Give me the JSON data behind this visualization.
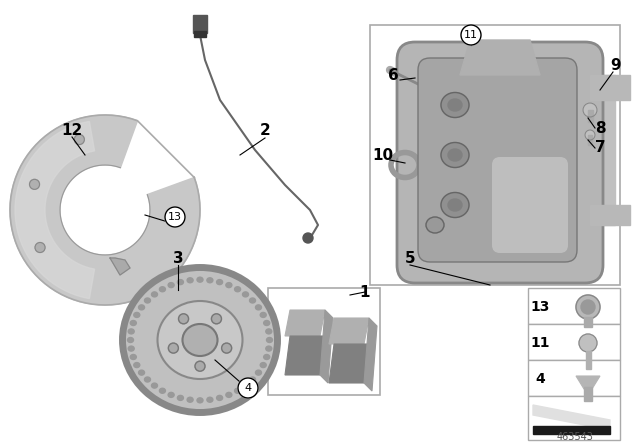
{
  "background_color": "#ffffff",
  "part_number_id": "463543",
  "fig_width": 6.4,
  "fig_height": 4.48,
  "dpi": 100,
  "colors": {
    "caliper_body": "#b0b0b0",
    "caliper_dark": "#909090",
    "caliper_light": "#d0d0d0",
    "rotor_face": "#b8b8b8",
    "rotor_edge": "#888888",
    "shield_light": "#c8c8c8",
    "shield_mid": "#b0b0b0",
    "wire_color": "#666666",
    "box_border": "#999999",
    "text_color": "#000000",
    "bolt_gray": "#b0b0b0",
    "shim_light": "#e0e0e0",
    "shim_dark": "#1a1a1a"
  }
}
